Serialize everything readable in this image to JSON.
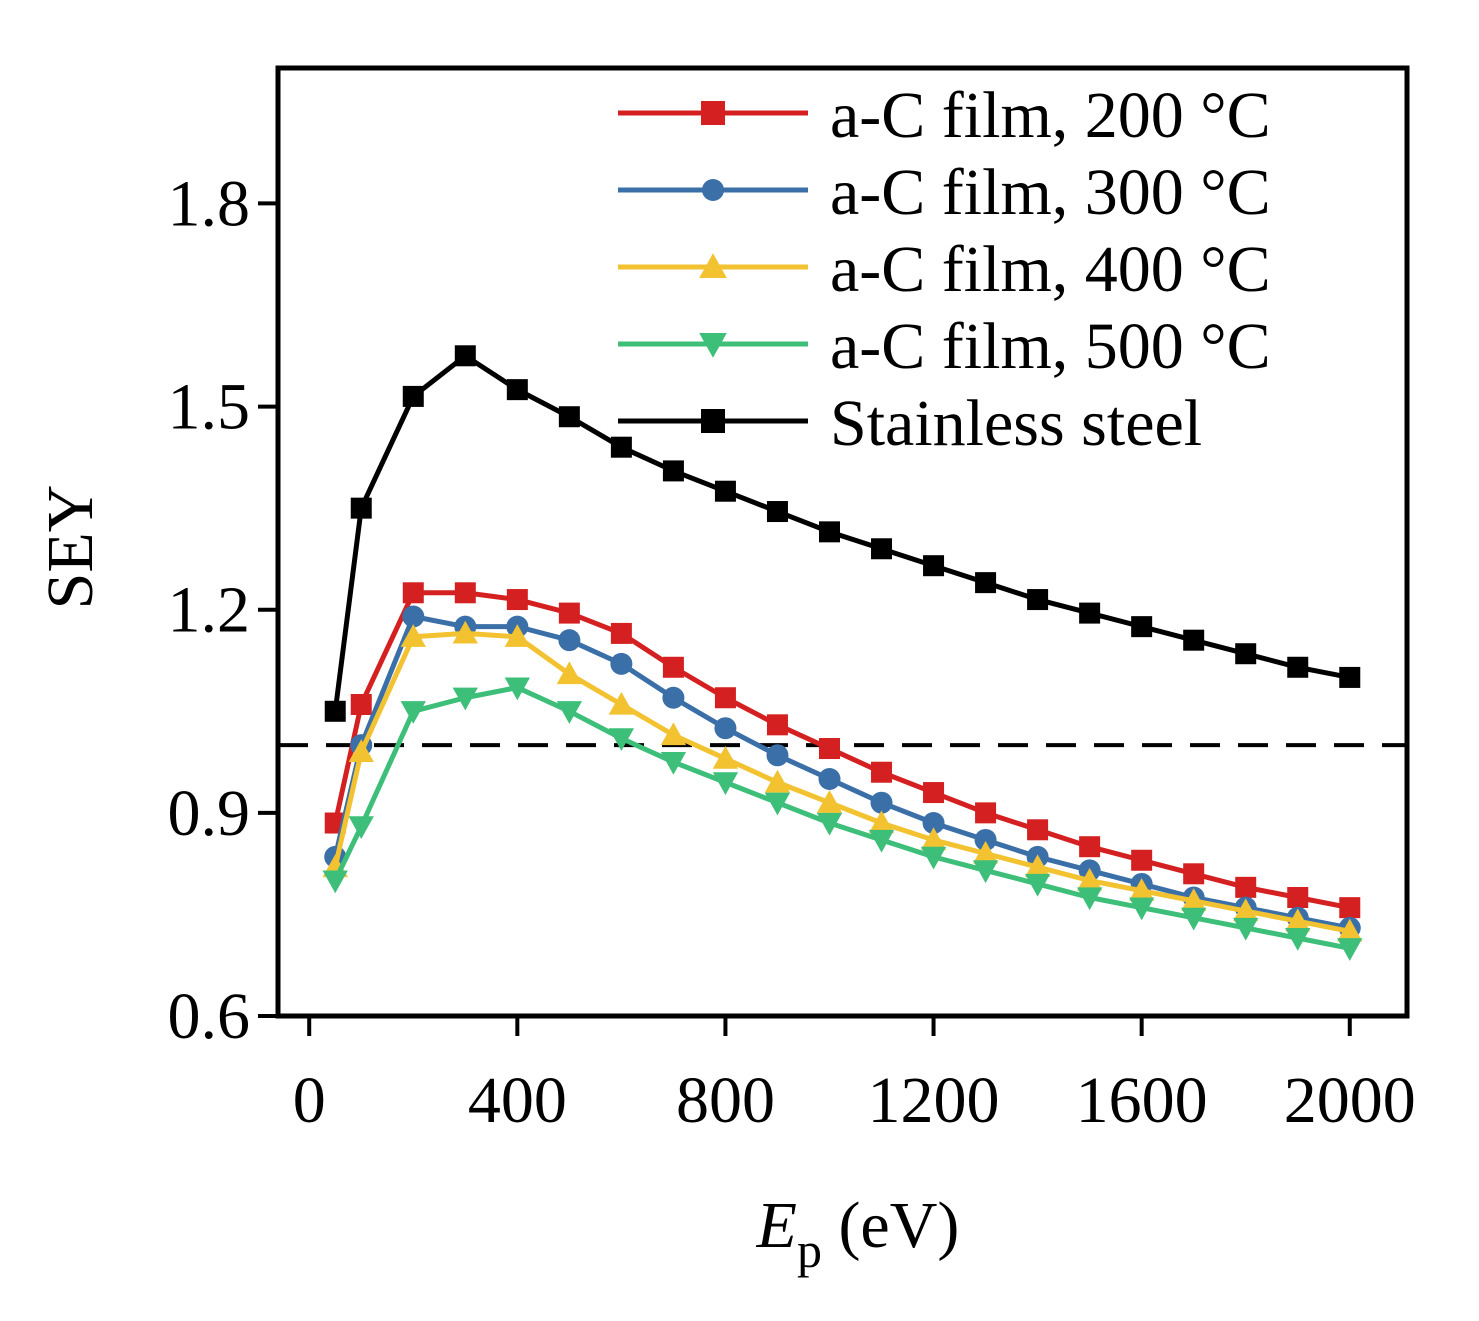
{
  "chart_data": {
    "type": "line",
    "title": "",
    "xlabel_main": "E",
    "xlabel_sub": "p",
    "xlabel_unit": " (eV)",
    "ylabel": "SEY",
    "xlim": [
      -60,
      2110
    ],
    "ylim": [
      0.6,
      2.0
    ],
    "xticks": [
      0,
      400,
      800,
      1200,
      1600,
      2000
    ],
    "yticks": [
      0.6,
      0.9,
      1.2,
      1.5,
      1.8
    ],
    "xtick_labels": [
      "0",
      "400",
      "800",
      "1200",
      "1600",
      "2000"
    ],
    "ytick_labels": [
      "0.6",
      "0.9",
      "1.2",
      "1.5",
      "1.8"
    ],
    "reference_line": {
      "y": 1.0,
      "style": "dashed"
    },
    "legend_position": "top-right",
    "series": [
      {
        "name": "a-C film, 200 °C",
        "color": "#d42020",
        "marker": "square",
        "x": [
          50,
          100,
          200,
          300,
          400,
          500,
          600,
          700,
          800,
          900,
          1000,
          1100,
          1200,
          1300,
          1400,
          1500,
          1600,
          1700,
          1800,
          1900,
          2000
        ],
        "y": [
          0.885,
          1.06,
          1.225,
          1.225,
          1.215,
          1.195,
          1.165,
          1.115,
          1.07,
          1.03,
          0.995,
          0.96,
          0.93,
          0.9,
          0.875,
          0.85,
          0.83,
          0.81,
          0.79,
          0.775,
          0.76
        ]
      },
      {
        "name": "a-C film, 300 °C",
        "color": "#3a6fa8",
        "marker": "circle",
        "x": [
          50,
          100,
          200,
          300,
          400,
          500,
          600,
          700,
          800,
          900,
          1000,
          1100,
          1200,
          1300,
          1400,
          1500,
          1600,
          1700,
          1800,
          1900,
          2000
        ],
        "y": [
          0.835,
          1.0,
          1.19,
          1.175,
          1.175,
          1.155,
          1.12,
          1.07,
          1.025,
          0.985,
          0.95,
          0.915,
          0.885,
          0.86,
          0.835,
          0.815,
          0.795,
          0.775,
          0.76,
          0.745,
          0.73
        ]
      },
      {
        "name": "a-C film, 400 °C",
        "color": "#f2c230",
        "marker": "triangle-up",
        "x": [
          50,
          100,
          200,
          300,
          400,
          500,
          600,
          700,
          800,
          900,
          1000,
          1100,
          1200,
          1300,
          1400,
          1500,
          1600,
          1700,
          1800,
          1900,
          2000
        ],
        "y": [
          0.82,
          0.99,
          1.16,
          1.165,
          1.16,
          1.105,
          1.06,
          1.015,
          0.98,
          0.945,
          0.915,
          0.885,
          0.86,
          0.84,
          0.82,
          0.8,
          0.785,
          0.77,
          0.755,
          0.74,
          0.725
        ]
      },
      {
        "name": "a-C film, 500 °C",
        "color": "#3dbf7a",
        "marker": "triangle-down",
        "x": [
          50,
          100,
          200,
          300,
          400,
          500,
          600,
          700,
          800,
          900,
          1000,
          1100,
          1200,
          1300,
          1400,
          1500,
          1600,
          1700,
          1800,
          1900,
          2000
        ],
        "y": [
          0.8,
          0.88,
          1.05,
          1.07,
          1.085,
          1.05,
          1.01,
          0.975,
          0.945,
          0.915,
          0.885,
          0.86,
          0.835,
          0.815,
          0.795,
          0.775,
          0.76,
          0.745,
          0.73,
          0.715,
          0.7
        ]
      },
      {
        "name": "Stainless steel",
        "color": "#000000",
        "marker": "square",
        "x": [
          50,
          100,
          200,
          300,
          400,
          500,
          600,
          700,
          800,
          900,
          1000,
          1100,
          1200,
          1300,
          1400,
          1500,
          1600,
          1700,
          1800,
          1900,
          2000
        ],
        "y": [
          1.05,
          1.35,
          1.515,
          1.575,
          1.525,
          1.485,
          1.44,
          1.405,
          1.375,
          1.345,
          1.315,
          1.29,
          1.265,
          1.24,
          1.215,
          1.195,
          1.175,
          1.155,
          1.135,
          1.115,
          1.1
        ]
      }
    ]
  }
}
